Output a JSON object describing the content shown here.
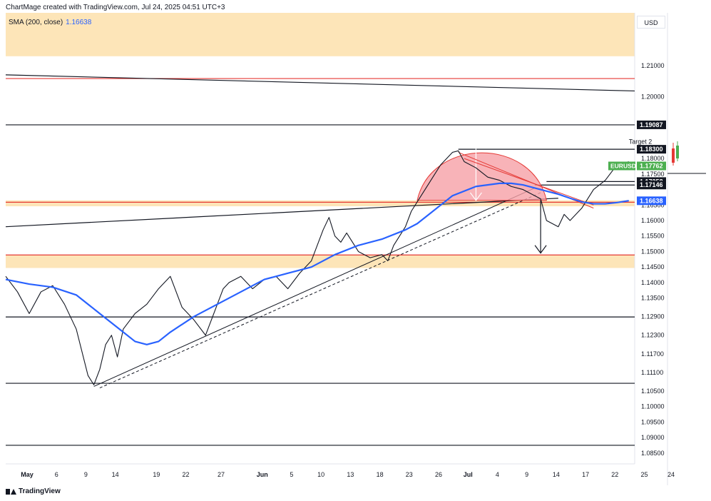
{
  "header": {
    "attribution": "ChartMage created with TradingView.com, Jul 24, 2025 04:51 UTC+3"
  },
  "indicator": {
    "name": "SMA (200, close)",
    "value": "1.16638",
    "color": "#2962ff"
  },
  "currency": "USD",
  "footer": {
    "brand": "TradingView"
  },
  "right_axis_fragment": "24",
  "colors": {
    "sma": "#2962ff",
    "zone": "#fde5b8",
    "red_line": "#e53935",
    "rounding_fill": "#f6a0a6",
    "price_label": "#4caf50"
  },
  "chart_data": {
    "type": "line",
    "symbol": "EURUSD",
    "title": "",
    "xlabel": "",
    "ylabel": "",
    "ylim": [
      1.0815,
      1.227
    ],
    "x_ticks": [
      {
        "label": "May",
        "x": 0
      },
      {
        "label": "6",
        "x": 5
      },
      {
        "label": "9",
        "x": 10
      },
      {
        "label": "14",
        "x": 15
      },
      {
        "label": "19",
        "x": 22
      },
      {
        "label": "22",
        "x": 27
      },
      {
        "label": "27",
        "x": 33
      },
      {
        "label": "Jun",
        "x": 40
      },
      {
        "label": "5",
        "x": 45
      },
      {
        "label": "10",
        "x": 50
      },
      {
        "label": "13",
        "x": 55
      },
      {
        "label": "18",
        "x": 60
      },
      {
        "label": "23",
        "x": 65
      },
      {
        "label": "26",
        "x": 70
      },
      {
        "label": "Jul",
        "x": 75
      },
      {
        "label": "4",
        "x": 80
      },
      {
        "label": "9",
        "x": 85
      },
      {
        "label": "14",
        "x": 90
      },
      {
        "label": "17",
        "x": 95
      },
      {
        "label": "22",
        "x": 100
      },
      {
        "label": "25",
        "x": 105
      }
    ],
    "y_ticks": [
      "1.21000",
      "1.20000",
      "1.18000",
      "1.17500",
      "1.16500",
      "1.16000",
      "1.15500",
      "1.15000",
      "1.14500",
      "1.14000",
      "1.13500",
      "1.12900",
      "1.12300",
      "1.11700",
      "1.11100",
      "1.10500",
      "1.10000",
      "1.09500",
      "1.09000",
      "1.08500"
    ],
    "price_labels": [
      {
        "text": "1.19087",
        "value": 1.19087,
        "style": "black"
      },
      {
        "text": "1.18300",
        "value": 1.183,
        "style": "black"
      },
      {
        "text": "1.17762",
        "value": 1.17762,
        "style": "green"
      },
      {
        "text": "1.17258",
        "value": 1.17258,
        "style": "black"
      },
      {
        "text": "1.17146",
        "value": 1.17146,
        "style": "black"
      },
      {
        "text": "1.16638",
        "value": 1.16638,
        "style": "blue"
      }
    ],
    "symbol_label": "EURUSD",
    "annotations": [
      {
        "text": "Target 2",
        "x": 106,
        "y": 1.1848
      }
    ],
    "series": [
      {
        "kind": "price",
        "x": [
          0,
          2,
          4,
          6,
          8,
          10,
          12,
          14,
          15,
          16,
          17,
          18,
          19,
          20,
          22,
          24,
          26,
          28,
          30,
          32,
          34,
          36,
          37,
          38,
          40,
          42,
          44,
          46,
          48,
          50,
          52,
          54,
          55,
          56,
          57,
          58,
          60,
          62,
          64,
          65,
          66,
          68,
          69,
          70,
          71,
          72,
          74,
          76,
          77,
          78,
          80,
          82,
          84,
          86,
          88,
          90,
          91,
          92,
          94,
          95,
          96,
          98,
          100,
          102,
          104,
          106
        ],
        "y": [
          1.142,
          1.137,
          1.13,
          1.137,
          1.139,
          1.133,
          1.125,
          1.11,
          1.107,
          1.112,
          1.12,
          1.123,
          1.116,
          1.125,
          1.13,
          1.133,
          1.138,
          1.142,
          1.132,
          1.128,
          1.123,
          1.133,
          1.138,
          1.14,
          1.142,
          1.138,
          1.141,
          1.142,
          1.138,
          1.143,
          1.147,
          1.157,
          1.161,
          1.155,
          1.153,
          1.156,
          1.15,
          1.148,
          1.149,
          1.147,
          1.152,
          1.158,
          1.163,
          1.166,
          1.169,
          1.172,
          1.178,
          1.182,
          1.1825,
          1.179,
          1.177,
          1.174,
          1.173,
          1.171,
          1.17,
          1.168,
          1.167,
          1.16,
          1.158,
          1.162,
          1.16,
          1.164,
          1.17,
          1.173,
          1.178,
          1.179
        ]
      },
      {
        "kind": "sma",
        "x": [
          0,
          4,
          8,
          12,
          16,
          20,
          22,
          24,
          26,
          28,
          32,
          36,
          40,
          44,
          48,
          52,
          56,
          60,
          64,
          68,
          70,
          72,
          74,
          76,
          80,
          84,
          86,
          88,
          90,
          92,
          94,
          96,
          98,
          100,
          102,
          104,
          106
        ],
        "y": [
          1.141,
          1.1395,
          1.1385,
          1.136,
          1.13,
          1.124,
          1.121,
          1.12,
          1.121,
          1.124,
          1.129,
          1.133,
          1.137,
          1.141,
          1.143,
          1.145,
          1.149,
          1.152,
          1.154,
          1.157,
          1.159,
          1.162,
          1.165,
          1.168,
          1.171,
          1.172,
          1.172,
          1.1715,
          1.1705,
          1.1695,
          1.1685,
          1.1672,
          1.166,
          1.1654,
          1.1654,
          1.1658,
          1.1664
        ]
      }
    ],
    "horizontal_lines": [
      {
        "value": 1.2058,
        "color": "red"
      },
      {
        "value": 1.19087,
        "color": "black"
      },
      {
        "value": 1.183,
        "color": "black",
        "x_start": 77
      },
      {
        "value": 1.17258,
        "color": "black",
        "x_start": 92
      },
      {
        "value": 1.17146,
        "color": "black",
        "x_start": 90
      },
      {
        "value": 1.1659,
        "color": "red",
        "x_start": 0
      },
      {
        "value": 1.1489,
        "color": "red"
      },
      {
        "value": 1.1289,
        "color": "black"
      },
      {
        "value": 1.1075,
        "color": "black"
      },
      {
        "value": 1.0875,
        "color": "black"
      }
    ],
    "zones": [
      {
        "from": 1.213,
        "to": 1.227
      },
      {
        "from": 1.1646,
        "to": 1.1665
      },
      {
        "from": 1.1447,
        "to": 1.1489
      }
    ]
  }
}
